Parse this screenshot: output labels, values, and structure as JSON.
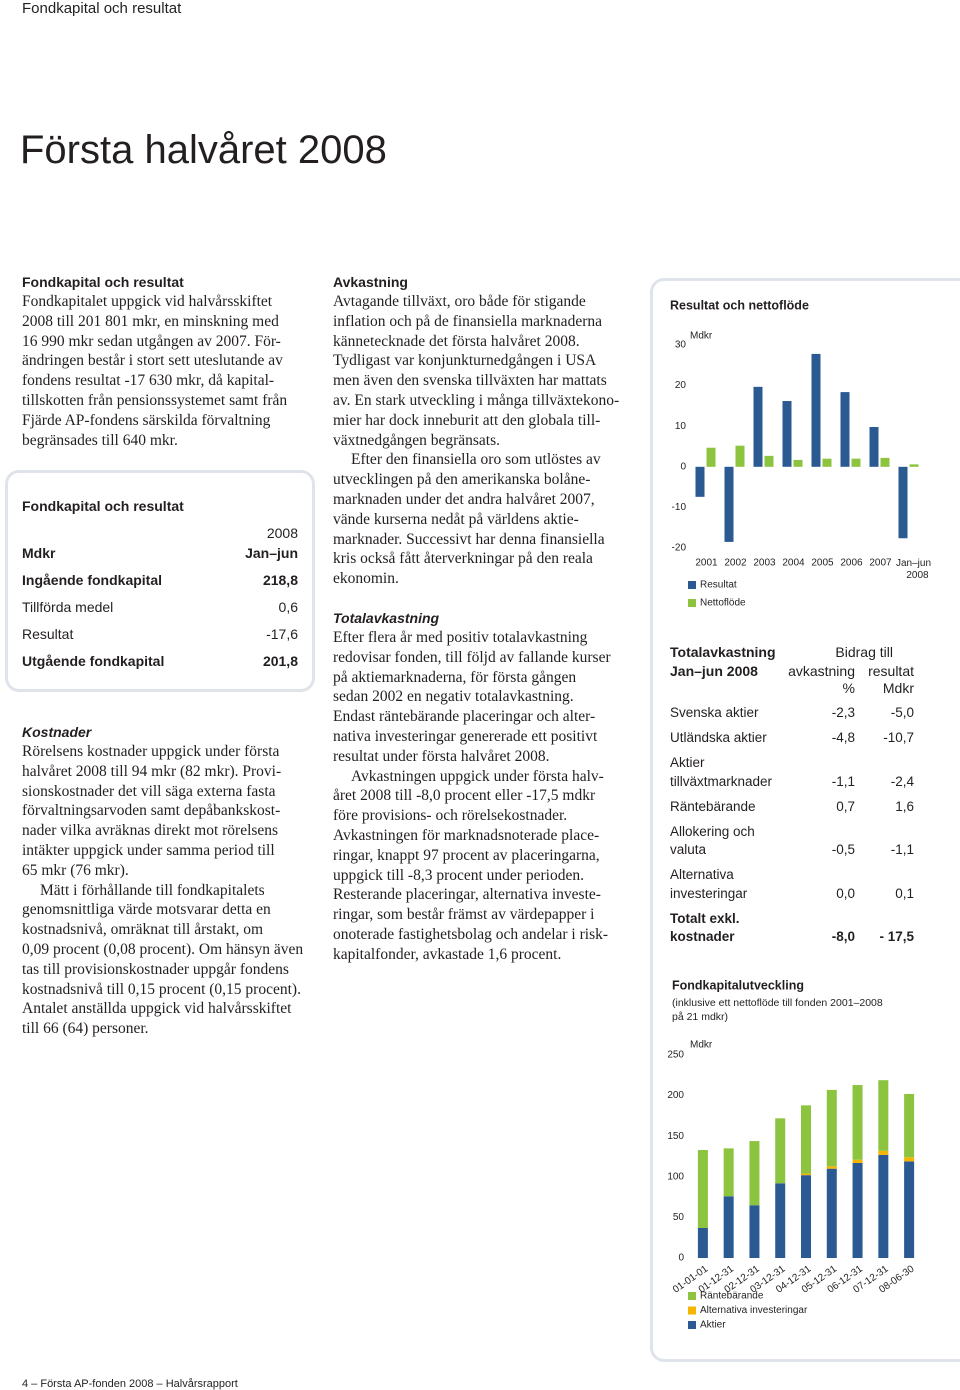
{
  "header": {
    "section": "Fondkapital och resultat",
    "title": "Första halvåret 2008"
  },
  "fondkapital": {
    "heading": "Fondkapital och resultat",
    "paragraphs": [
      [
        "Fondkapitalet uppgick vid halvårsskiftet",
        "2008 till 201 801 mkr, en minskning med",
        "16 990 mkr sedan utgången av 2007. För-",
        "ändringen består i stort sett uteslutande av",
        "fondens resultat -17 630 mkr, då kapital-",
        "tillskotten från pensionssystemet samt från",
        "Fjärde AP-fondens särskilda förvaltning",
        "begränsades till 640 mkr."
      ]
    ]
  },
  "table_fondkapital": {
    "title": "Fondkapital och resultat",
    "year": "2008",
    "unit": "Mdkr",
    "period": "Jan–jun",
    "rows": [
      [
        "Ingående fondkapital",
        "218,8"
      ],
      [
        "Tillförda medel",
        "0,6"
      ],
      [
        "Resultat",
        "-17,6"
      ],
      [
        "Utgående fondkapital",
        "201,8"
      ]
    ]
  },
  "kostnader": {
    "heading": "Kostnader",
    "paragraphs": [
      [
        "Rörelsens kostnader uppgick under första",
        "halvåret 2008 till 94 mkr (82 mkr). Provi-",
        "sionskostnader det vill säga externa fasta",
        "förvaltningsarvoden samt depåbankskost-",
        "nader vilka avräknas direkt mot rörelsens",
        "intäkter uppgick under samma period till",
        "65 mkr (76 mkr)."
      ],
      [
        "Mätt i förhållande till fondkapitalets",
        "genomsnittliga värde motsvarar detta en",
        "kostnadsnivå, omräknat till årstakt, om",
        "0,09 procent (0,08 procent). Om hänsyn även",
        "tas till provisionskostnader uppgår fondens",
        "kostnadsnivå till 0,15 procent (0,15 procent).",
        "Antalet anställda uppgick vid halvårsskiftet",
        "till 66 (64) personer."
      ]
    ]
  },
  "avkastning": {
    "heading": "Avkastning",
    "paragraphs": [
      [
        "Avtagande tillväxt, oro både för stigande",
        "inflation och på de finansiella marknaderna",
        "kännetecknade det första halvåret 2008.",
        "Tydligast var konjunkturnedgången i USA",
        "men även den svenska tillväxten har mattats",
        "av. En stark utveckling i många tillväxtekono-",
        "mier har dock inneburit att den globala till-",
        "växtnedgången begränsats."
      ],
      [
        "Efter den finansiella oro som utlöstes av",
        "utvecklingen på den amerikanska bolåne-",
        "marknaden under det andra halvåret 2007,",
        "vände kurserna nedåt på världens aktie-",
        "marknader. Successivt har denna finansiella",
        "kris också fått återverkningar på den reala",
        "ekonomin."
      ]
    ]
  },
  "totalavkastning": {
    "heading": "Totalavkastning",
    "paragraphs": [
      [
        "Efter flera år med positiv totalavkastning",
        "redovisar fonden, till följd av fallande kurser",
        "på aktiemarknaderna, för första gången",
        "sedan 2002 en negativ totalavkastning.",
        "Endast räntebärande placeringar och alter-",
        "nativa investeringar genererade ett positivt",
        "resultat under första halvåret 2008."
      ],
      [
        "Avkastningen uppgick under första halv-",
        "året 2008 till -8,0 procent eller -17,5 mdkr",
        "före provisions- och rörelsekostnader.",
        "Avkastningen för marknadsnoterade place-",
        "ringar, knappt 97 procent av placeringarna,",
        "uppgick till -8,3 procent under perioden.",
        "Resterande placeringar, alternativa investe-",
        "ringar, som består främst av värdepapper i",
        "onoterade fastighetsbolag och andelar i risk-",
        "kapitalfonder, avkastade 1,6 procent."
      ]
    ]
  },
  "chart_data": [
    {
      "type": "bar",
      "title": "Resultat och nettoflöde",
      "y_label": "Mdkr",
      "categories": [
        "2001",
        "2002",
        "2003",
        "2004",
        "2005",
        "2006",
        "2007",
        "Jan–jun 2008"
      ],
      "series": [
        {
          "name": "Resultat",
          "color": "#2b5a93",
          "values": [
            -7.4,
            -18.5,
            19.7,
            16.2,
            27.8,
            18.4,
            9.8,
            -17.6
          ]
        },
        {
          "name": "Nettoflöde",
          "color": "#8cc43f",
          "values": [
            4.7,
            5.2,
            2.7,
            1.7,
            2.0,
            2.0,
            2.2,
            0.6
          ]
        }
      ],
      "ylim": [
        -20,
        30
      ],
      "yticks": [
        -20,
        -10,
        0,
        10,
        20,
        30
      ],
      "grid": false
    },
    {
      "type": "bar",
      "stacked": true,
      "title": "Fondkapitalutveckling",
      "subtitle": "(inklusive ett nettoflöde till fonden 2001–2008 på 21 mdkr)",
      "y_label": "Mdkr",
      "categories": [
        "01-01-01",
        "01-12-31",
        "02-12-31",
        "03-12-31",
        "04-12-31",
        "05-12-31",
        "06-12-31",
        "07-12-31",
        "08-06-30"
      ],
      "series": [
        {
          "name": "Aktier",
          "color": "#2b5a93",
          "values": [
            37,
            76,
            65,
            92,
            102,
            110,
            117,
            127,
            119
          ]
        },
        {
          "name": "Alternativa investeringar",
          "color": "#f5b400",
          "values": [
            0,
            0,
            0,
            0,
            2,
            3,
            4,
            5,
            5
          ]
        },
        {
          "name": "Räntebärande",
          "color": "#8cc43f",
          "values": [
            96,
            59,
            79,
            80,
            84,
            94,
            92,
            87,
            78
          ]
        }
      ],
      "ylim": [
        0,
        250
      ],
      "yticks": [
        0,
        50,
        100,
        150,
        200,
        250
      ],
      "grid": false
    }
  ],
  "table_totalavkastning": {
    "title": "Totalavkastning",
    "period": "Jan–jun 2008",
    "group_header": "Bidrag till",
    "columns": [
      "avkastning",
      "resultat"
    ],
    "units": [
      "%",
      "Mdkr"
    ],
    "rows": [
      [
        "Svenska aktier",
        "-2,3",
        "-5,0"
      ],
      [
        "Utländska aktier",
        "-4,8",
        "-10,7"
      ],
      [
        "Aktier tillväxtmarknader",
        "-1,1",
        "-2,4"
      ],
      [
        "Räntebärande",
        "0,7",
        "1,6"
      ],
      [
        "Allokering och valuta",
        "-0,5",
        "-1,1"
      ],
      [
        "Alternativa investeringar",
        "0,0",
        "0,1"
      ],
      [
        "Totalt exkl. kostnader",
        "-8,0",
        "- 17,5"
      ]
    ]
  },
  "footer": {
    "text": "4 – Första AP-fonden 2008 – Halvårsrapport"
  }
}
